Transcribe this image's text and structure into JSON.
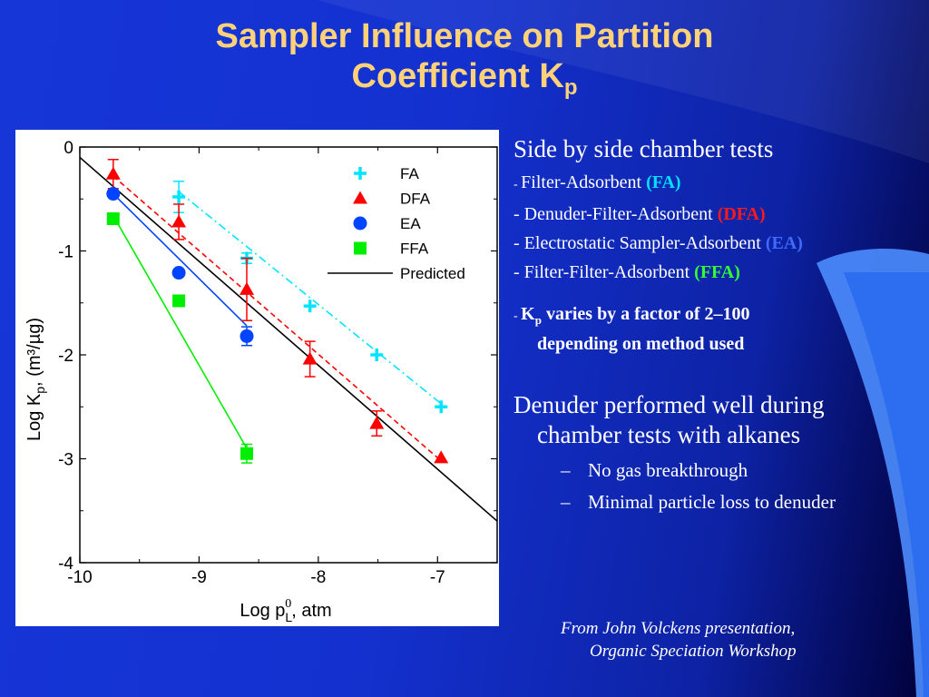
{
  "slide": {
    "title_line1": "Sampler Influence on Partition",
    "title_line2": "Coefficient K",
    "title_sub": "p"
  },
  "bullets": {
    "heading": "Side by side chamber tests",
    "items": [
      {
        "prefix": "- ",
        "text": "Filter-Adsorbent ",
        "tag": "(FA)",
        "tag_color": "#00e0ff"
      },
      {
        "prefix": "- ",
        "text": "Denuder-Filter-Adsorbent ",
        "tag": "(DFA)",
        "tag_color": "#ff1a1a"
      },
      {
        "prefix": "- ",
        "text": "Electrostatic Sampler-Adsorbent ",
        "tag": "(EA)",
        "tag_color": "#3f6bff"
      },
      {
        "prefix": "- ",
        "text": "Filter-Filter-Adsorbent ",
        "tag": "(FFA)",
        "tag_color": "#32ff32"
      }
    ],
    "kp_prefix": "- ",
    "kp_k": "K",
    "kp_sub": "p",
    "kp_line1_rest": " varies by a factor of 2–100",
    "kp_line2": "depending on method used",
    "denuder_line1": "Denuder performed well during",
    "denuder_line2": "chamber tests with alkanes",
    "sub_items": [
      {
        "marker": "–",
        "text": "No gas breakthrough"
      },
      {
        "marker": "–",
        "text": "Minimal particle loss to denuder"
      }
    ]
  },
  "source": {
    "line1": "From John Volckens presentation,",
    "line2": "Organic Speciation Workshop"
  },
  "chart_data": {
    "type": "scatter",
    "xlabel": "Log p",
    "xlabel_sub": "L",
    "xlabel_sup": "0",
    "xlabel_unit": ", atm",
    "ylabel": "Log K",
    "ylabel_sub": "p",
    "ylabel_unit": ", (m³/µg)",
    "xlim": [
      -10,
      -6.5
    ],
    "ylim": [
      -4,
      0
    ],
    "xticks": [
      -10,
      -9,
      -8,
      -7
    ],
    "yticks": [
      0,
      -1,
      -2,
      -3,
      -4
    ],
    "legend_position": "top-right",
    "series": [
      {
        "name": "FA",
        "marker": "plus",
        "color": "#00e5ff",
        "line": "dashdot",
        "points": [
          {
            "x": -9.17,
            "y": -0.48,
            "err": 0.15
          },
          {
            "x": -8.6,
            "y": -1.07,
            "err": 0.05
          },
          {
            "x": -8.07,
            "y": -1.53
          },
          {
            "x": -7.51,
            "y": -2.0
          },
          {
            "x": -6.97,
            "y": -2.5
          }
        ],
        "fit": [
          [
            -9.17,
            -0.43
          ],
          [
            -6.97,
            -2.47
          ]
        ]
      },
      {
        "name": "DFA",
        "marker": "triangle",
        "color": "#ff0000",
        "line": "dashed",
        "points": [
          {
            "x": -9.72,
            "y": -0.26,
            "err": 0.14
          },
          {
            "x": -9.17,
            "y": -0.72,
            "err": 0.17
          },
          {
            "x": -8.6,
            "y": -1.37,
            "err": 0.3
          },
          {
            "x": -8.07,
            "y": -2.04,
            "err": 0.17
          },
          {
            "x": -7.51,
            "y": -2.66,
            "err": 0.12
          },
          {
            "x": -6.97,
            "y": -2.99
          }
        ],
        "fit": [
          [
            -9.72,
            -0.28
          ],
          [
            -6.97,
            -3.02
          ]
        ]
      },
      {
        "name": "EA",
        "marker": "circle",
        "color": "#0044ff",
        "line": "solid",
        "points": [
          {
            "x": -9.72,
            "y": -0.45
          },
          {
            "x": -9.17,
            "y": -1.21
          },
          {
            "x": -8.6,
            "y": -1.82,
            "err": 0.09
          }
        ],
        "fit": [
          [
            -9.72,
            -0.45
          ],
          [
            -8.6,
            -1.72
          ]
        ]
      },
      {
        "name": "FFA",
        "marker": "square",
        "color": "#00ee00",
        "line": "solid",
        "points": [
          {
            "x": -9.72,
            "y": -0.69
          },
          {
            "x": -9.17,
            "y": -1.48
          },
          {
            "x": -8.6,
            "y": -2.95,
            "err": 0.09
          }
        ],
        "fit": [
          [
            -9.72,
            -0.66
          ],
          [
            -8.6,
            -2.9
          ]
        ]
      },
      {
        "name": "Predicted",
        "marker": "none",
        "color": "#000000",
        "line": "solid",
        "points": [],
        "fit": [
          [
            -10,
            -0.1
          ],
          [
            -6.5,
            -3.6
          ]
        ]
      }
    ]
  }
}
